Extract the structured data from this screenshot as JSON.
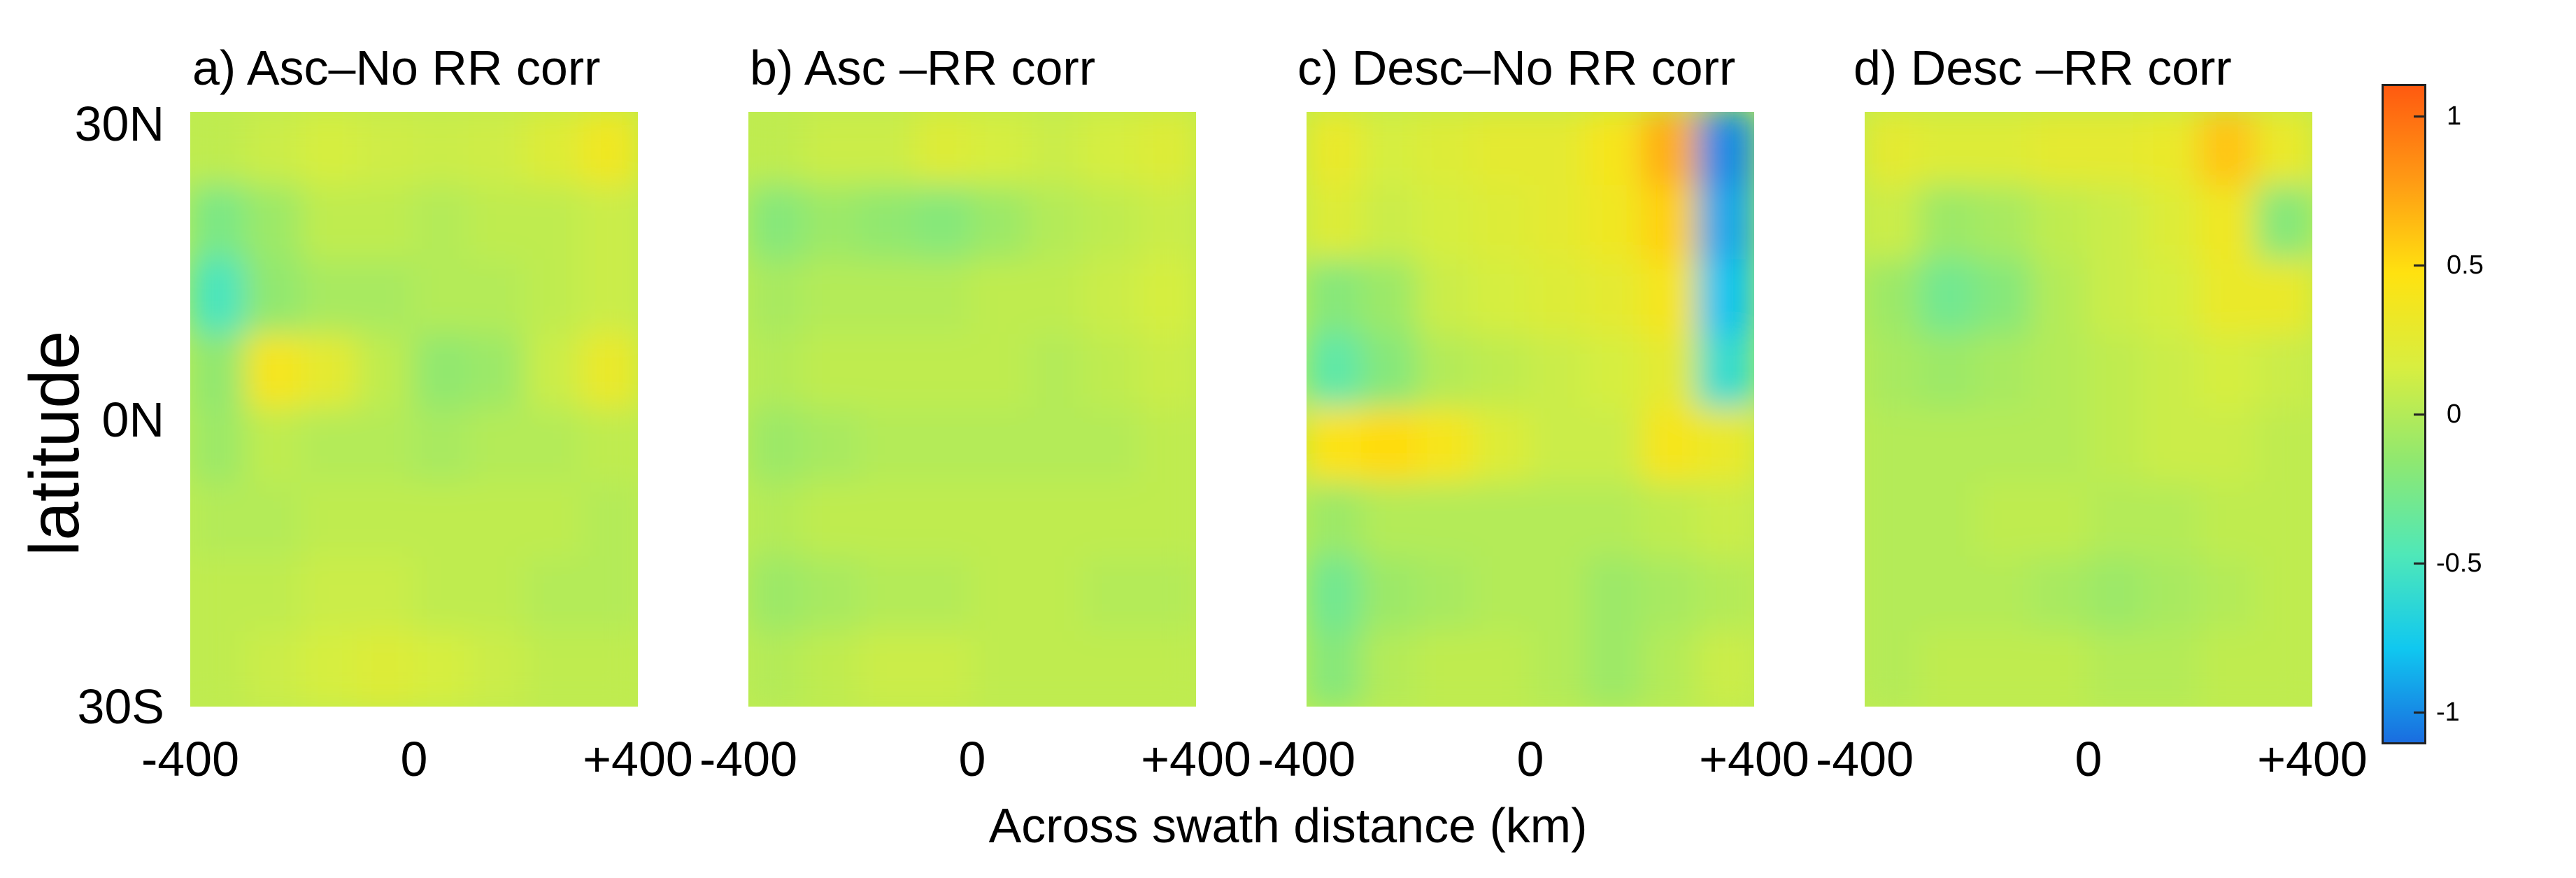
{
  "chart_data": {
    "type": "heatmap",
    "x_axis_label": "Across swath distance (km)",
    "y_axis_label": "latitude",
    "x_ticks": [
      "-400",
      "0",
      "+400"
    ],
    "y_ticks": [
      "30N",
      "0N",
      "30S"
    ],
    "x_range_km": [
      -400,
      400
    ],
    "y_range_deg": [
      -30,
      30
    ],
    "colorbar": {
      "ticks": [
        "1",
        "0.5",
        "0",
        "-0.5",
        "-1"
      ],
      "tick_values": [
        1,
        0.5,
        0,
        -0.5,
        -1
      ],
      "range": [
        -1.1,
        1.1
      ],
      "colormap": [
        "#1a6de0",
        "#10c8f0",
        "#4fe8b8",
        "#8fe870",
        "#d8ee40",
        "#ffe210",
        "#ff9a14",
        "#ff5a10"
      ]
    },
    "panels": [
      {
        "title": "a) Asc–No RR corr",
        "values": [
          [
            0.05,
            0.1,
            0.15,
            0.12,
            0.1,
            0.12,
            0.2,
            0.35
          ],
          [
            -0.25,
            -0.1,
            0.05,
            0.05,
            0.0,
            0.05,
            0.05,
            0.1
          ],
          [
            -0.5,
            -0.15,
            -0.05,
            -0.05,
            0.0,
            0.0,
            0.05,
            0.1
          ],
          [
            -0.15,
            0.4,
            0.25,
            0.05,
            -0.15,
            -0.1,
            0.1,
            0.3
          ],
          [
            -0.1,
            0.05,
            0.0,
            0.0,
            -0.05,
            0.0,
            0.0,
            0.05
          ],
          [
            0.0,
            0.0,
            0.05,
            0.05,
            0.05,
            0.05,
            0.05,
            0.0
          ],
          [
            0.05,
            0.05,
            0.1,
            0.1,
            0.05,
            0.05,
            0.0,
            0.0
          ],
          [
            0.05,
            0.1,
            0.15,
            0.2,
            0.15,
            0.1,
            0.05,
            0.05
          ]
        ]
      },
      {
        "title": "b) Asc –RR corr",
        "values": [
          [
            0.05,
            0.1,
            0.1,
            0.2,
            0.15,
            0.1,
            0.15,
            0.2
          ],
          [
            -0.2,
            -0.1,
            -0.15,
            -0.2,
            -0.1,
            0.0,
            0.05,
            0.1
          ],
          [
            -0.05,
            0.0,
            0.0,
            0.0,
            0.05,
            0.05,
            0.1,
            0.15
          ],
          [
            0.0,
            0.05,
            0.05,
            0.05,
            0.05,
            0.0,
            0.05,
            0.1
          ],
          [
            -0.1,
            -0.05,
            0.0,
            0.0,
            0.0,
            0.0,
            0.0,
            0.05
          ],
          [
            0.0,
            0.05,
            0.05,
            0.05,
            0.05,
            0.05,
            0.05,
            0.05
          ],
          [
            -0.1,
            -0.05,
            0.0,
            0.0,
            0.05,
            0.05,
            0.0,
            0.0
          ],
          [
            0.0,
            0.05,
            0.1,
            0.1,
            0.05,
            0.05,
            0.05,
            0.05
          ]
        ]
      },
      {
        "title": "c) Desc–No RR corr",
        "values": [
          [
            0.3,
            0.15,
            0.2,
            0.25,
            0.25,
            0.4,
            0.7,
            -1.0
          ],
          [
            0.2,
            0.1,
            0.15,
            0.2,
            0.25,
            0.35,
            0.55,
            -0.9
          ],
          [
            -0.2,
            -0.1,
            0.1,
            0.15,
            0.2,
            0.25,
            0.4,
            -0.8
          ],
          [
            -0.4,
            -0.2,
            0.0,
            0.05,
            0.1,
            0.15,
            0.25,
            -0.6
          ],
          [
            0.45,
            0.5,
            0.4,
            0.2,
            0.1,
            0.1,
            0.4,
            0.3
          ],
          [
            -0.1,
            0.0,
            0.0,
            0.0,
            0.0,
            0.0,
            0.05,
            0.1
          ],
          [
            -0.3,
            -0.1,
            -0.05,
            0.0,
            0.0,
            -0.1,
            -0.05,
            0.0
          ],
          [
            -0.2,
            0.0,
            0.05,
            0.05,
            0.0,
            -0.1,
            0.0,
            0.1
          ]
        ]
      },
      {
        "title": "d) Desc –RR corr",
        "values": [
          [
            0.25,
            0.2,
            0.2,
            0.25,
            0.25,
            0.3,
            0.6,
            0.3
          ],
          [
            0.1,
            -0.1,
            -0.05,
            0.05,
            0.1,
            0.2,
            0.35,
            -0.2
          ],
          [
            -0.1,
            -0.3,
            -0.2,
            0.0,
            0.1,
            0.15,
            0.3,
            0.3
          ],
          [
            -0.05,
            -0.1,
            -0.05,
            0.0,
            0.05,
            0.1,
            0.15,
            0.1
          ],
          [
            0.0,
            0.0,
            0.0,
            0.0,
            0.05,
            0.1,
            0.1,
            0.05
          ],
          [
            0.0,
            0.0,
            0.05,
            0.05,
            0.0,
            0.0,
            0.05,
            0.05
          ],
          [
            0.0,
            0.0,
            0.0,
            -0.05,
            -0.1,
            -0.05,
            0.0,
            0.05
          ],
          [
            0.0,
            0.05,
            0.05,
            0.05,
            0.0,
            0.0,
            0.05,
            0.05
          ]
        ]
      }
    ]
  }
}
